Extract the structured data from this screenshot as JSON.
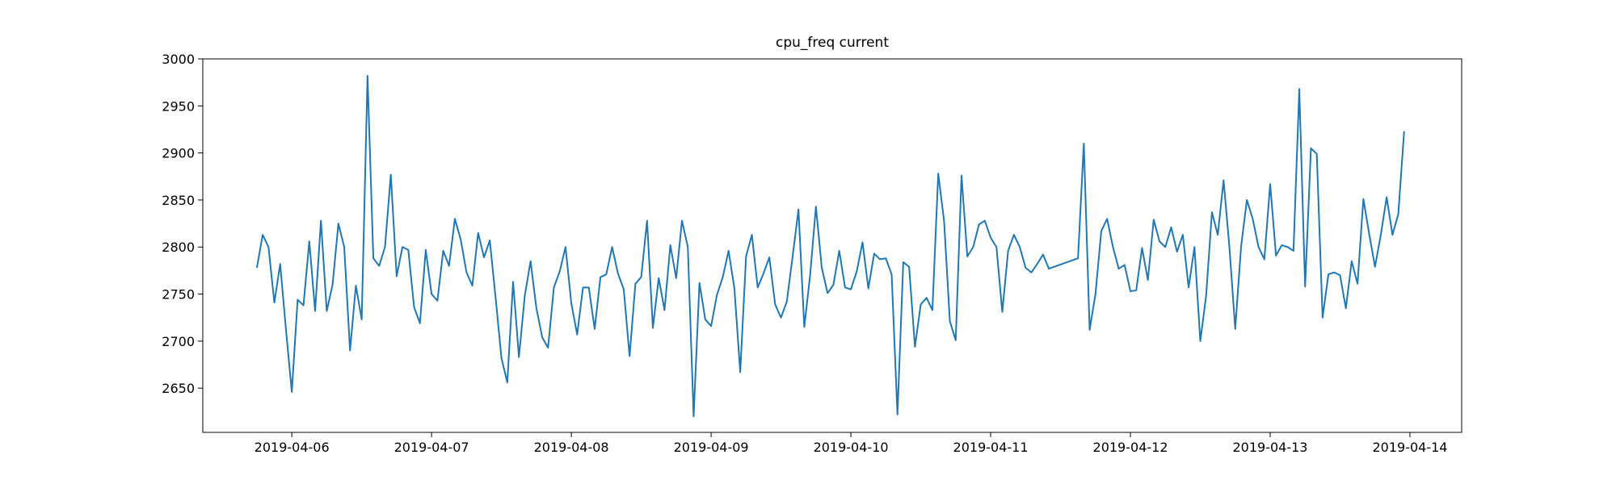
{
  "chart_data": {
    "type": "line",
    "title": "cpu_freq current",
    "color": "#1f77b4",
    "x": [
      "2019-04-05 18:00",
      "2019-04-05 19:00",
      "2019-04-05 20:00",
      "2019-04-05 21:00",
      "2019-04-05 22:00",
      "2019-04-05 23:00",
      "2019-04-06 00:00",
      "2019-04-06 01:00",
      "2019-04-06 02:00",
      "2019-04-06 03:00",
      "2019-04-06 04:00",
      "2019-04-06 05:00",
      "2019-04-06 06:00",
      "2019-04-06 07:00",
      "2019-04-06 08:00",
      "2019-04-06 09:00",
      "2019-04-06 10:00",
      "2019-04-06 11:00",
      "2019-04-06 12:00",
      "2019-04-06 13:00",
      "2019-04-06 14:00",
      "2019-04-06 15:00",
      "2019-04-06 16:00",
      "2019-04-06 17:00",
      "2019-04-06 18:00",
      "2019-04-06 19:00",
      "2019-04-06 20:00",
      "2019-04-06 21:00",
      "2019-04-06 22:00",
      "2019-04-06 23:00",
      "2019-04-07 00:00",
      "2019-04-07 01:00",
      "2019-04-07 02:00",
      "2019-04-07 03:00",
      "2019-04-07 04:00",
      "2019-04-07 05:00",
      "2019-04-07 06:00",
      "2019-04-07 07:00",
      "2019-04-07 08:00",
      "2019-04-07 09:00",
      "2019-04-07 10:00",
      "2019-04-07 11:00",
      "2019-04-07 12:00",
      "2019-04-07 13:00",
      "2019-04-07 14:00",
      "2019-04-07 15:00",
      "2019-04-07 16:00",
      "2019-04-07 17:00",
      "2019-04-07 18:00",
      "2019-04-07 19:00",
      "2019-04-07 20:00",
      "2019-04-07 21:00",
      "2019-04-07 22:00",
      "2019-04-07 23:00",
      "2019-04-08 00:00",
      "2019-04-08 01:00",
      "2019-04-08 02:00",
      "2019-04-08 03:00",
      "2019-04-08 04:00",
      "2019-04-08 05:00",
      "2019-04-08 06:00",
      "2019-04-08 07:00",
      "2019-04-08 08:00",
      "2019-04-08 09:00",
      "2019-04-08 10:00",
      "2019-04-08 11:00",
      "2019-04-08 12:00",
      "2019-04-08 13:00",
      "2019-04-08 14:00",
      "2019-04-08 15:00",
      "2019-04-08 16:00",
      "2019-04-08 17:00",
      "2019-04-08 18:00",
      "2019-04-08 19:00",
      "2019-04-08 20:00",
      "2019-04-08 21:00",
      "2019-04-08 22:00",
      "2019-04-08 23:00",
      "2019-04-09 00:00",
      "2019-04-09 01:00",
      "2019-04-09 02:00",
      "2019-04-09 03:00",
      "2019-04-09 04:00",
      "2019-04-09 05:00",
      "2019-04-09 06:00",
      "2019-04-09 07:00",
      "2019-04-09 08:00",
      "2019-04-09 09:00",
      "2019-04-09 10:00",
      "2019-04-09 11:00",
      "2019-04-09 12:00",
      "2019-04-09 13:00",
      "2019-04-09 14:00",
      "2019-04-09 15:00",
      "2019-04-09 16:00",
      "2019-04-09 17:00",
      "2019-04-09 18:00",
      "2019-04-09 19:00",
      "2019-04-09 20:00",
      "2019-04-09 21:00",
      "2019-04-09 22:00",
      "2019-04-09 23:00",
      "2019-04-10 00:00",
      "2019-04-10 01:00",
      "2019-04-10 02:00",
      "2019-04-10 03:00",
      "2019-04-10 04:00",
      "2019-04-10 05:00",
      "2019-04-10 06:00",
      "2019-04-10 07:00",
      "2019-04-10 08:00",
      "2019-04-10 09:00",
      "2019-04-10 10:00",
      "2019-04-10 11:00",
      "2019-04-10 12:00",
      "2019-04-10 13:00",
      "2019-04-10 14:00",
      "2019-04-10 15:00",
      "2019-04-10 16:00",
      "2019-04-10 17:00",
      "2019-04-10 18:00",
      "2019-04-10 19:00",
      "2019-04-10 20:00",
      "2019-04-10 21:00",
      "2019-04-10 22:00",
      "2019-04-10 23:00",
      "2019-04-11 00:00",
      "2019-04-11 01:00",
      "2019-04-11 02:00",
      "2019-04-11 03:00",
      "2019-04-11 04:00",
      "2019-04-11 05:00",
      "2019-04-11 06:00",
      "2019-04-11 07:00",
      "2019-04-11 08:00",
      "2019-04-11 09:00",
      "2019-04-11 10:00",
      "2019-04-11 15:00",
      "2019-04-11 16:00",
      "2019-04-11 17:00",
      "2019-04-11 18:00",
      "2019-04-11 19:00",
      "2019-04-11 20:00",
      "2019-04-11 21:00",
      "2019-04-11 22:00",
      "2019-04-11 23:00",
      "2019-04-12 00:00",
      "2019-04-12 01:00",
      "2019-04-12 02:00",
      "2019-04-12 03:00",
      "2019-04-12 04:00",
      "2019-04-12 05:00",
      "2019-04-12 06:00",
      "2019-04-12 07:00",
      "2019-04-12 08:00",
      "2019-04-12 09:00",
      "2019-04-12 10:00",
      "2019-04-12 11:00",
      "2019-04-12 12:00",
      "2019-04-12 13:00",
      "2019-04-12 14:00",
      "2019-04-12 15:00",
      "2019-04-12 16:00",
      "2019-04-12 17:00",
      "2019-04-12 18:00",
      "2019-04-12 19:00",
      "2019-04-12 20:00",
      "2019-04-12 21:00",
      "2019-04-12 22:00",
      "2019-04-12 23:00",
      "2019-04-13 00:00",
      "2019-04-13 01:00",
      "2019-04-13 02:00",
      "2019-04-13 03:00",
      "2019-04-13 04:00",
      "2019-04-13 05:00",
      "2019-04-13 06:00",
      "2019-04-13 07:00",
      "2019-04-13 08:00",
      "2019-04-13 09:00",
      "2019-04-13 10:00",
      "2019-04-13 11:00",
      "2019-04-13 12:00",
      "2019-04-13 13:00",
      "2019-04-13 14:00",
      "2019-04-13 15:00",
      "2019-04-13 16:00",
      "2019-04-13 17:00",
      "2019-04-13 18:00",
      "2019-04-13 19:00",
      "2019-04-13 20:00",
      "2019-04-13 21:00",
      "2019-04-13 22:00",
      "2019-04-13 23:00"
    ],
    "values": [
      2778,
      2813,
      2800,
      2741,
      2782,
      2712,
      2646,
      2744,
      2738,
      2806,
      2732,
      2828,
      2732,
      2760,
      2825,
      2800,
      2690,
      2759,
      2723,
      2982,
      2788,
      2780,
      2800,
      2877,
      2769,
      2800,
      2797,
      2736,
      2719,
      2797,
      2750,
      2743,
      2796,
      2780,
      2830,
      2808,
      2773,
      2759,
      2815,
      2789,
      2807,
      2746,
      2682,
      2656,
      2763,
      2683,
      2748,
      2785,
      2735,
      2704,
      2693,
      2757,
      2774,
      2800,
      2740,
      2707,
      2757,
      2757,
      2713,
      2768,
      2771,
      2800,
      2772,
      2755,
      2684,
      2761,
      2768,
      2828,
      2714,
      2767,
      2733,
      2802,
      2767,
      2828,
      2800,
      2620,
      2762,
      2723,
      2716,
      2749,
      2768,
      2796,
      2756,
      2667,
      2790,
      2813,
      2757,
      2772,
      2789,
      2739,
      2725,
      2742,
      2790,
      2840,
      2715,
      2770,
      2843,
      2778,
      2751,
      2760,
      2796,
      2757,
      2755,
      2774,
      2805,
      2756,
      2793,
      2787,
      2788,
      2771,
      2622,
      2784,
      2779,
      2694,
      2739,
      2746,
      2733,
      2878,
      2828,
      2721,
      2701,
      2876,
      2790,
      2800,
      2824,
      2828,
      2810,
      2800,
      2731,
      2796,
      2813,
      2800,
      2778,
      2773,
      2782,
      2792,
      2777,
      2788,
      2910,
      2712,
      2750,
      2817,
      2830,
      2800,
      2777,
      2781,
      2753,
      2754,
      2799,
      2765,
      2829,
      2806,
      2800,
      2821,
      2795,
      2813,
      2757,
      2800,
      2700,
      2748,
      2837,
      2813,
      2871,
      2800,
      2713,
      2800,
      2850,
      2830,
      2800,
      2787,
      2867,
      2791,
      2802,
      2800,
      2796,
      2968,
      2758,
      2905,
      2899,
      2725,
      2771,
      2773,
      2770,
      2735,
      2785,
      2761,
      2851,
      2814,
      2779,
      2813,
      2853,
      2813,
      2835,
      2923
    ],
    "xlim": [
      "2019-04-05 08:43",
      "2019-04-14 08:53"
    ],
    "xticks": [
      "2019-04-06",
      "2019-04-07",
      "2019-04-08",
      "2019-04-09",
      "2019-04-10",
      "2019-04-11",
      "2019-04-12",
      "2019-04-13",
      "2019-04-14"
    ],
    "ylim": [
      2603,
      3000
    ],
    "yticks": [
      2650,
      2700,
      2750,
      2800,
      2850,
      2900,
      2950,
      3000
    ]
  }
}
